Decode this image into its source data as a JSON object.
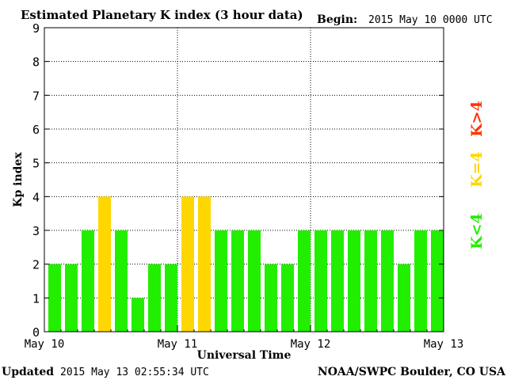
{
  "header": {
    "title": "Estimated Planetary K index (3 hour data)",
    "begin_label": "Begin:",
    "begin_value": "2015 May 10 0000 UTC"
  },
  "footer": {
    "updated_label": "Updated",
    "updated_value": "2015 May 13 02:55:34 UTC",
    "source": "NOAA/SWPC Boulder, CO USA"
  },
  "legend": {
    "high": {
      "label": "K>4",
      "color": "#ff3300"
    },
    "mid": {
      "label": "K=4",
      "color": "#ffd700"
    },
    "low": {
      "label": "K<4",
      "color": "#22ee00"
    }
  },
  "chart_data": {
    "type": "bar",
    "title": "Estimated Planetary K index (3 hour data)",
    "xlabel": "Universal Time",
    "ylabel": "Kp index",
    "ylim": [
      0,
      9
    ],
    "yticks": [
      "0",
      "1",
      "2",
      "3",
      "4",
      "5",
      "6",
      "7",
      "8",
      "9"
    ],
    "xtick_labels": [
      "May 10",
      "May 11",
      "May 12",
      "May 13"
    ],
    "grid": true,
    "interval_hours": 3,
    "values": [
      2,
      2,
      3,
      4,
      3,
      1,
      2,
      2,
      4,
      4,
      3,
      3,
      3,
      2,
      2,
      3,
      3,
      3,
      3,
      3,
      3,
      2,
      3,
      3
    ],
    "colors": {
      "below_4": "#22ee00",
      "equal_4": "#ffd700",
      "above_4": "#ff3300"
    }
  }
}
